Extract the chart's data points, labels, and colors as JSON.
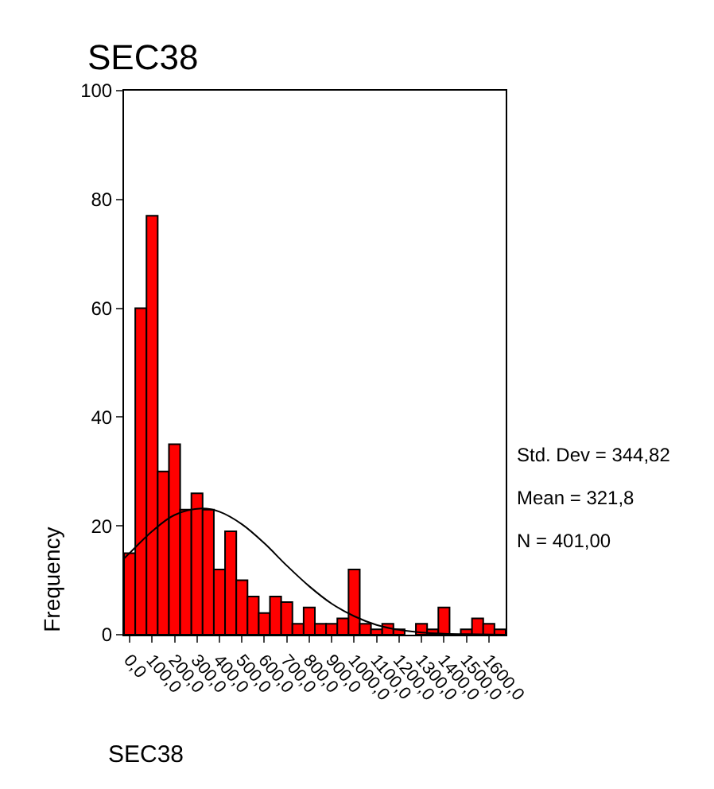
{
  "chart_data": {
    "type": "histogram",
    "title": "SEC38",
    "xlabel": "SEC38",
    "ylabel": "Frequency",
    "bins": [
      -25,
      25,
      75,
      125,
      175,
      225,
      275,
      325,
      375,
      425,
      475,
      525,
      575,
      625,
      675,
      725,
      775,
      825,
      875,
      925,
      975,
      1025,
      1075,
      1125,
      1175,
      1225,
      1275,
      1325,
      1375,
      1425,
      1475,
      1525,
      1575,
      1625,
      1675
    ],
    "values": [
      15,
      60,
      77,
      30,
      35,
      23,
      26,
      23,
      12,
      19,
      10,
      7,
      4,
      7,
      6,
      2,
      5,
      2,
      2,
      3,
      12,
      2,
      1,
      2,
      1,
      0,
      2,
      1,
      5,
      0,
      1,
      3,
      2,
      1
    ],
    "color": "#ff0000",
    "series": [
      {
        "type": "line",
        "color": "#000000",
        "x": [
          -25,
          0,
          100,
          200,
          321.8,
          400,
          500,
          600,
          700,
          800,
          900,
          1000,
          1100,
          1200,
          1300,
          1400,
          1500,
          1675
        ],
        "values": [
          14,
          15,
          19,
          22,
          23.2,
          22.6,
          20.3,
          16.8,
          12.7,
          8.9,
          5.7,
          3.4,
          1.8,
          0.9,
          0.4,
          0.2,
          0.1,
          0
        ]
      }
    ],
    "xlim": [
      -25,
      1675
    ],
    "xticks": [
      {
        "value": 0,
        "label": "0,0"
      },
      {
        "value": 100,
        "label": "100,0"
      },
      {
        "value": 200,
        "label": "200,0"
      },
      {
        "value": 300,
        "label": "300,0"
      },
      {
        "value": 400,
        "label": "400,0"
      },
      {
        "value": 500,
        "label": "500,0"
      },
      {
        "value": 600,
        "label": "600,0"
      },
      {
        "value": 700,
        "label": "700,0"
      },
      {
        "value": 800,
        "label": "800,0"
      },
      {
        "value": 900,
        "label": "900,0"
      },
      {
        "value": 1000,
        "label": "1000,0"
      },
      {
        "value": 1100,
        "label": "1100,0"
      },
      {
        "value": 1200,
        "label": "1200,0"
      },
      {
        "value": 1300,
        "label": "1300,0"
      },
      {
        "value": 1400,
        "label": "1400,0"
      },
      {
        "value": 1500,
        "label": "1500,0"
      },
      {
        "value": 1600,
        "label": "1600,0"
      }
    ],
    "ylim": [
      0,
      100
    ],
    "yticks": [
      0,
      20,
      40,
      60,
      80,
      100
    ],
    "grid": false,
    "annotations": [
      "Std. Dev = 344,82",
      "Mean = 321,8",
      "N = 401,00"
    ]
  }
}
